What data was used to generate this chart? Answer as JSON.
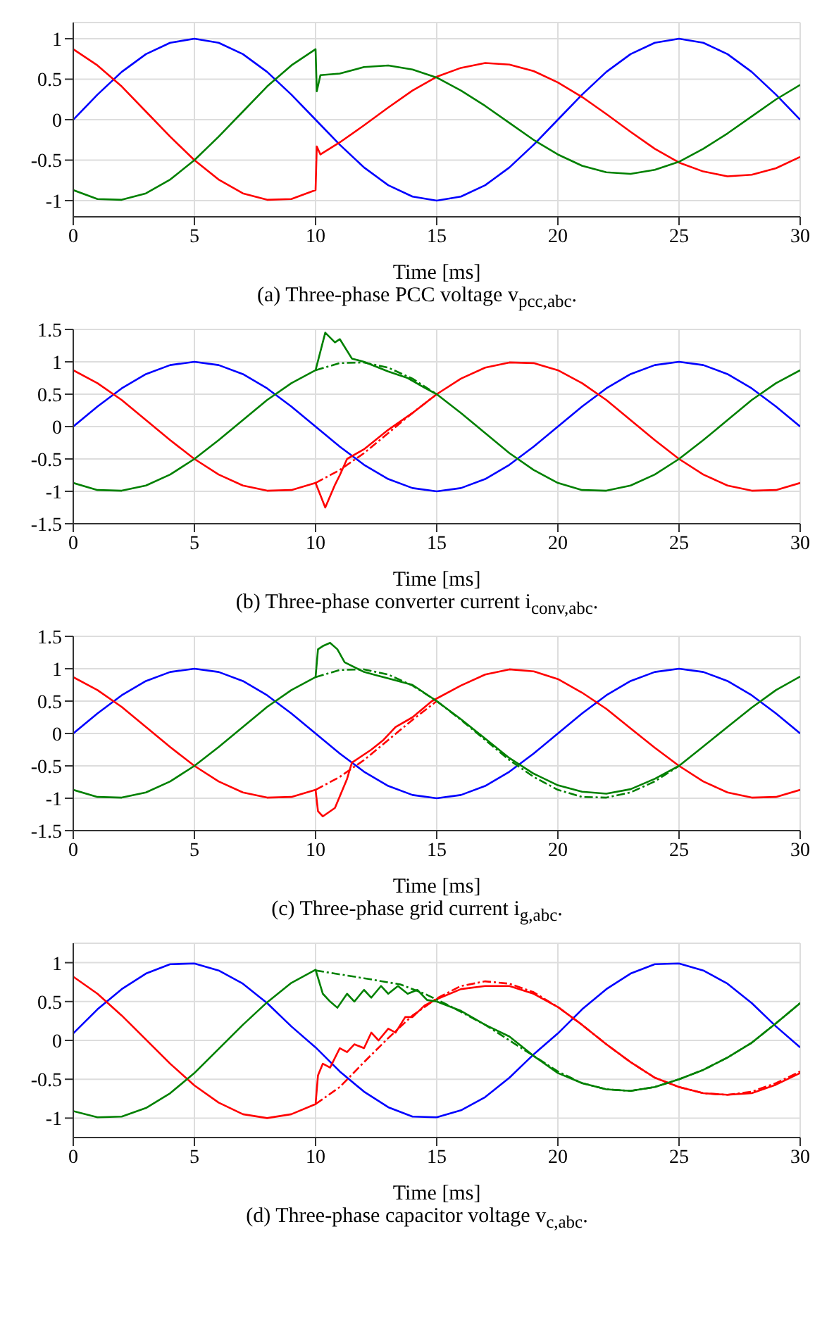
{
  "chart_data": [
    {
      "type": "line",
      "title": "(a) Three-phase PCC voltage v$_{pcc,abc}$.",
      "xlabel": "Time [ms]",
      "xlim": [
        0,
        30
      ],
      "xticks": [
        0,
        5,
        10,
        15,
        20,
        25,
        30
      ],
      "ylim": [
        -1.2,
        1.2
      ],
      "yticks": [
        -1,
        -0.5,
        0,
        0.5,
        1
      ],
      "grid": true,
      "marker": "none",
      "series": [
        {
          "color": "#0000ff",
          "line_style": "solid",
          "x": [
            0,
            1,
            2,
            3,
            4,
            5,
            6,
            7,
            8,
            9,
            10,
            11,
            12,
            13,
            14,
            15,
            16,
            17,
            18,
            19,
            20,
            21,
            22,
            23,
            24,
            25,
            26,
            27,
            28,
            29,
            30
          ],
          "values": [
            0,
            0.31,
            0.59,
            0.81,
            0.95,
            1,
            0.95,
            0.81,
            0.59,
            0.31,
            0,
            -0.31,
            -0.59,
            -0.81,
            -0.95,
            -1,
            -0.95,
            -0.81,
            -0.59,
            -0.31,
            0,
            0.31,
            0.59,
            0.81,
            0.95,
            1,
            0.95,
            0.81,
            0.59,
            0.31,
            0
          ]
        },
        {
          "color": "#ff0000",
          "line_style": "solid",
          "x": [
            0,
            1,
            2,
            3,
            4,
            5,
            6,
            7,
            8,
            9,
            10,
            10.05,
            10.2,
            11,
            12,
            13,
            14,
            15,
            16,
            17,
            18,
            19,
            20,
            21,
            22,
            23,
            24,
            25,
            26,
            27,
            28,
            29,
            30
          ],
          "values": [
            0.87,
            0.67,
            0.41,
            0.1,
            -0.21,
            -0.5,
            -0.74,
            -0.91,
            -0.99,
            -0.98,
            -0.87,
            -0.33,
            -0.43,
            -0.28,
            -0.07,
            0.15,
            0.36,
            0.53,
            0.64,
            0.7,
            0.68,
            0.6,
            0.46,
            0.28,
            0.07,
            -0.15,
            -0.36,
            -0.53,
            -0.64,
            -0.7,
            -0.68,
            -0.6,
            -0.46
          ]
        },
        {
          "color": "#008000",
          "line_style": "solid",
          "x": [
            0,
            1,
            2,
            3,
            4,
            5,
            6,
            7,
            8,
            9,
            10,
            10.05,
            10.2,
            11,
            12,
            13,
            14,
            15,
            16,
            17,
            18,
            19,
            20,
            21,
            22,
            23,
            24,
            25,
            26,
            27,
            28,
            29,
            30
          ],
          "values": [
            -0.87,
            -0.98,
            -0.99,
            -0.91,
            -0.74,
            -0.5,
            -0.21,
            0.1,
            0.41,
            0.67,
            0.87,
            0.35,
            0.55,
            0.57,
            0.65,
            0.67,
            0.62,
            0.52,
            0.36,
            0.17,
            -0.04,
            -0.25,
            -0.43,
            -0.57,
            -0.65,
            -0.67,
            -0.62,
            -0.52,
            -0.36,
            -0.17,
            0.04,
            0.25,
            0.43
          ]
        }
      ]
    },
    {
      "type": "line",
      "title": "(b) Three-phase converter current i$_{conv,abc}$.",
      "xlabel": "Time [ms]",
      "xlim": [
        0,
        30
      ],
      "xticks": [
        0,
        5,
        10,
        15,
        20,
        25,
        30
      ],
      "ylim": [
        -1.5,
        1.5
      ],
      "yticks": [
        -1.5,
        -1,
        -0.5,
        0,
        0.5,
        1,
        1.5
      ],
      "grid": true,
      "marker": "none",
      "series": [
        {
          "color": "#0000ff",
          "line_style": "solid",
          "x": [
            0,
            1,
            2,
            3,
            4,
            5,
            6,
            7,
            8,
            9,
            10,
            11,
            12,
            13,
            14,
            15,
            16,
            17,
            18,
            19,
            20,
            21,
            22,
            23,
            24,
            25,
            26,
            27,
            28,
            29,
            30
          ],
          "values": [
            0,
            0.31,
            0.59,
            0.81,
            0.95,
            1,
            0.95,
            0.81,
            0.59,
            0.31,
            0,
            -0.31,
            -0.59,
            -0.81,
            -0.95,
            -1,
            -0.95,
            -0.81,
            -0.59,
            -0.31,
            0,
            0.31,
            0.59,
            0.81,
            0.95,
            1,
            0.95,
            0.81,
            0.59,
            0.31,
            0
          ]
        },
        {
          "color": "#ff0000",
          "line_style": "dashed",
          "x": [
            10,
            11,
            12,
            13,
            14,
            15
          ],
          "values": [
            -0.87,
            -0.67,
            -0.41,
            -0.1,
            0.21,
            0.5
          ]
        },
        {
          "color": "#ff0000",
          "line_style": "solid",
          "x": [
            0,
            1,
            2,
            3,
            4,
            5,
            6,
            7,
            8,
            9,
            10,
            10.4,
            10.8,
            11,
            11.3,
            12,
            13,
            14,
            15,
            16,
            17,
            18,
            19,
            20,
            21,
            22,
            23,
            24,
            25,
            26,
            27,
            28,
            29,
            30
          ],
          "values": [
            0.87,
            0.67,
            0.41,
            0.1,
            -0.21,
            -0.5,
            -0.74,
            -0.91,
            -0.99,
            -0.98,
            -0.87,
            -1.25,
            -0.9,
            -0.75,
            -0.5,
            -0.35,
            -0.05,
            0.21,
            0.5,
            0.74,
            0.91,
            0.99,
            0.98,
            0.87,
            0.67,
            0.41,
            0.1,
            -0.21,
            -0.5,
            -0.74,
            -0.91,
            -0.99,
            -0.98,
            -0.87
          ]
        },
        {
          "color": "#008000",
          "line_style": "dashed",
          "x": [
            10,
            11,
            12,
            13,
            14,
            15
          ],
          "values": [
            0.87,
            0.98,
            0.99,
            0.91,
            0.74,
            0.5
          ]
        },
        {
          "color": "#008000",
          "line_style": "solid",
          "x": [
            0,
            1,
            2,
            3,
            4,
            5,
            6,
            7,
            8,
            9,
            10,
            10.4,
            10.8,
            11,
            11.5,
            12,
            13,
            13.8,
            14.5,
            15,
            16,
            17,
            18,
            19,
            20,
            21,
            22,
            23,
            24,
            25,
            26,
            27,
            28,
            29,
            30
          ],
          "values": [
            -0.87,
            -0.98,
            -0.99,
            -0.91,
            -0.74,
            -0.5,
            -0.21,
            0.1,
            0.41,
            0.67,
            0.87,
            1.45,
            1.3,
            1.35,
            1.05,
            1,
            0.85,
            0.75,
            0.6,
            0.5,
            0.21,
            -0.1,
            -0.41,
            -0.67,
            -0.87,
            -0.98,
            -0.99,
            -0.91,
            -0.74,
            -0.5,
            -0.21,
            0.1,
            0.41,
            0.67,
            0.87
          ]
        }
      ]
    },
    {
      "type": "line",
      "title": "(c) Three-phase grid current i$_{g,abc}$.",
      "xlabel": "Time [ms]",
      "xlim": [
        0,
        30
      ],
      "xticks": [
        0,
        5,
        10,
        15,
        20,
        25,
        30
      ],
      "ylim": [
        -1.5,
        1.5
      ],
      "yticks": [
        -1.5,
        -1,
        -0.5,
        0,
        0.5,
        1,
        1.5
      ],
      "grid": true,
      "marker": "none",
      "series": [
        {
          "color": "#0000ff",
          "line_style": "solid",
          "x": [
            0,
            1,
            2,
            3,
            4,
            5,
            6,
            7,
            8,
            9,
            10,
            11,
            12,
            13,
            14,
            15,
            16,
            17,
            18,
            19,
            20,
            21,
            22,
            23,
            24,
            25,
            26,
            27,
            28,
            29,
            30
          ],
          "values": [
            0,
            0.31,
            0.59,
            0.81,
            0.95,
            1,
            0.95,
            0.81,
            0.59,
            0.31,
            0,
            -0.31,
            -0.59,
            -0.81,
            -0.95,
            -1,
            -0.95,
            -0.81,
            -0.59,
            -0.31,
            0,
            0.31,
            0.59,
            0.81,
            0.95,
            1,
            0.95,
            0.81,
            0.59,
            0.31,
            0
          ]
        },
        {
          "color": "#ff0000",
          "line_style": "dashed",
          "x": [
            10,
            11,
            12,
            13,
            14,
            15
          ],
          "values": [
            -0.87,
            -0.67,
            -0.41,
            -0.1,
            0.21,
            0.5
          ]
        },
        {
          "color": "#ff0000",
          "line_style": "solid",
          "x": [
            0,
            1,
            2,
            3,
            4,
            5,
            6,
            7,
            8,
            9,
            10,
            10.1,
            10.3,
            10.8,
            11.3,
            11.5,
            12.3,
            12.8,
            13.3,
            14,
            14.8,
            16,
            17,
            18,
            19,
            20,
            21,
            22,
            23,
            24,
            25,
            26,
            27,
            28,
            29,
            30
          ],
          "values": [
            0.87,
            0.67,
            0.41,
            0.1,
            -0.21,
            -0.5,
            -0.74,
            -0.91,
            -0.99,
            -0.98,
            -0.87,
            -1.2,
            -1.28,
            -1.15,
            -0.7,
            -0.45,
            -0.25,
            -0.1,
            0.1,
            0.25,
            0.5,
            0.74,
            0.91,
            0.99,
            0.96,
            0.84,
            0.63,
            0.38,
            0.08,
            -0.22,
            -0.5,
            -0.74,
            -0.91,
            -0.99,
            -0.98,
            -0.87
          ]
        },
        {
          "color": "#008000",
          "line_style": "dashed",
          "x": [
            10,
            11,
            12,
            13,
            14,
            15,
            16,
            17,
            18,
            19,
            20,
            21,
            22,
            23,
            24,
            25
          ],
          "values": [
            0.87,
            0.98,
            0.99,
            0.91,
            0.74,
            0.5,
            0.21,
            -0.1,
            -0.41,
            -0.67,
            -0.87,
            -0.98,
            -0.99,
            -0.91,
            -0.74,
            -0.5
          ]
        },
        {
          "color": "#008000",
          "line_style": "solid",
          "x": [
            0,
            1,
            2,
            3,
            4,
            5,
            6,
            7,
            8,
            9,
            10,
            10.1,
            10.3,
            10.6,
            10.9,
            11.2,
            12,
            12.5,
            13,
            14,
            15,
            16,
            17,
            18,
            19,
            20,
            21,
            22,
            23,
            24,
            25,
            26,
            27,
            28,
            29,
            30
          ],
          "values": [
            -0.87,
            -0.98,
            -0.99,
            -0.91,
            -0.74,
            -0.5,
            -0.21,
            0.1,
            0.41,
            0.67,
            0.87,
            1.3,
            1.35,
            1.4,
            1.3,
            1.1,
            0.95,
            0.9,
            0.85,
            0.75,
            0.5,
            0.22,
            -0.08,
            -0.38,
            -0.62,
            -0.8,
            -0.9,
            -0.93,
            -0.86,
            -0.7,
            -0.5,
            -0.2,
            0.1,
            0.4,
            0.67,
            0.88
          ]
        }
      ]
    },
    {
      "type": "line",
      "title": "(d) Three-phase capacitor voltage v$_{c,abc}$.",
      "xlabel": "Time [ms]",
      "xlim": [
        0,
        30
      ],
      "xticks": [
        0,
        5,
        10,
        15,
        20,
        25,
        30
      ],
      "ylim": [
        -1.25,
        1.25
      ],
      "yticks": [
        -1,
        -0.5,
        0,
        0.5,
        1
      ],
      "grid": true,
      "marker": "none",
      "series": [
        {
          "color": "#0000ff",
          "line_style": "solid",
          "x": [
            0,
            1,
            2,
            3,
            4,
            5,
            6,
            7,
            8,
            9,
            10,
            11,
            12,
            13,
            14,
            15,
            16,
            17,
            18,
            19,
            20,
            21,
            22,
            23,
            24,
            25,
            26,
            27,
            28,
            29,
            30
          ],
          "values": [
            0.09,
            0.4,
            0.66,
            0.86,
            0.98,
            0.99,
            0.9,
            0.73,
            0.48,
            0.18,
            -0.09,
            -0.4,
            -0.66,
            -0.86,
            -0.98,
            -0.99,
            -0.9,
            -0.73,
            -0.48,
            -0.18,
            0.09,
            0.4,
            0.66,
            0.86,
            0.98,
            0.99,
            0.9,
            0.73,
            0.48,
            0.18,
            -0.09
          ]
        },
        {
          "color": "#ff0000",
          "line_style": "dashed",
          "x": [
            10,
            11,
            12,
            13,
            14,
            15,
            16,
            17,
            18,
            19,
            20,
            21,
            22,
            23,
            24,
            25,
            26,
            27,
            28,
            29,
            30
          ],
          "values": [
            -0.82,
            -0.6,
            -0.28,
            0.03,
            0.32,
            0.54,
            0.7,
            0.76,
            0.73,
            0.62,
            0.43,
            0.2,
            -0.05,
            -0.28,
            -0.48,
            -0.6,
            -0.68,
            -0.7,
            -0.66,
            -0.55,
            -0.4
          ]
        },
        {
          "color": "#ff0000",
          "line_style": "solid",
          "x": [
            0,
            1,
            2,
            3,
            4,
            5,
            6,
            7,
            8,
            9,
            10,
            10.1,
            10.3,
            10.6,
            11,
            11.3,
            11.6,
            12,
            12.3,
            12.6,
            13,
            13.3,
            13.7,
            14,
            14.5,
            15,
            16,
            17,
            18,
            19,
            20,
            21,
            22,
            23,
            24,
            25,
            26,
            27,
            28,
            29,
            30
          ],
          "values": [
            0.82,
            0.6,
            0.32,
            0.01,
            -0.3,
            -0.58,
            -0.8,
            -0.95,
            -1,
            -0.95,
            -0.82,
            -0.45,
            -0.3,
            -0.35,
            -0.1,
            -0.15,
            -0.05,
            -0.1,
            0.1,
            0,
            0.15,
            0.1,
            0.3,
            0.3,
            0.45,
            0.53,
            0.66,
            0.7,
            0.7,
            0.6,
            0.43,
            0.2,
            -0.05,
            -0.28,
            -0.48,
            -0.6,
            -0.68,
            -0.7,
            -0.68,
            -0.57,
            -0.42
          ]
        },
        {
          "color": "#008000",
          "line_style": "dashed",
          "x": [
            10,
            12,
            13.5,
            14.5,
            15.5,
            17,
            18,
            19,
            20,
            21,
            22,
            23,
            24,
            25,
            26,
            27,
            28,
            29,
            30
          ],
          "values": [
            0.9,
            0.8,
            0.72,
            0.6,
            0.45,
            0.2,
            0,
            -0.2,
            -0.4,
            -0.55,
            -0.63,
            -0.65,
            -0.6,
            -0.5,
            -0.38,
            -0.22,
            -0.03,
            0.22,
            0.48
          ]
        },
        {
          "color": "#008000",
          "line_style": "solid",
          "x": [
            0,
            1,
            2,
            3,
            4,
            5,
            6,
            7,
            8,
            9,
            10,
            10.3,
            10.6,
            10.9,
            11.3,
            11.6,
            12,
            12.3,
            12.7,
            13,
            13.4,
            13.8,
            14.2,
            14.6,
            15,
            16,
            17,
            18,
            19,
            20,
            21,
            22,
            23,
            24,
            25,
            26,
            27,
            28,
            29,
            30
          ],
          "values": [
            -0.91,
            -0.99,
            -0.98,
            -0.87,
            -0.68,
            -0.42,
            -0.11,
            0.2,
            0.49,
            0.74,
            0.91,
            0.6,
            0.5,
            0.42,
            0.6,
            0.5,
            0.65,
            0.55,
            0.7,
            0.6,
            0.7,
            0.6,
            0.65,
            0.52,
            0.5,
            0.38,
            0.2,
            0.05,
            -0.2,
            -0.42,
            -0.55,
            -0.63,
            -0.65,
            -0.6,
            -0.5,
            -0.38,
            -0.22,
            -0.03,
            0.22,
            0.48
          ]
        }
      ]
    }
  ]
}
